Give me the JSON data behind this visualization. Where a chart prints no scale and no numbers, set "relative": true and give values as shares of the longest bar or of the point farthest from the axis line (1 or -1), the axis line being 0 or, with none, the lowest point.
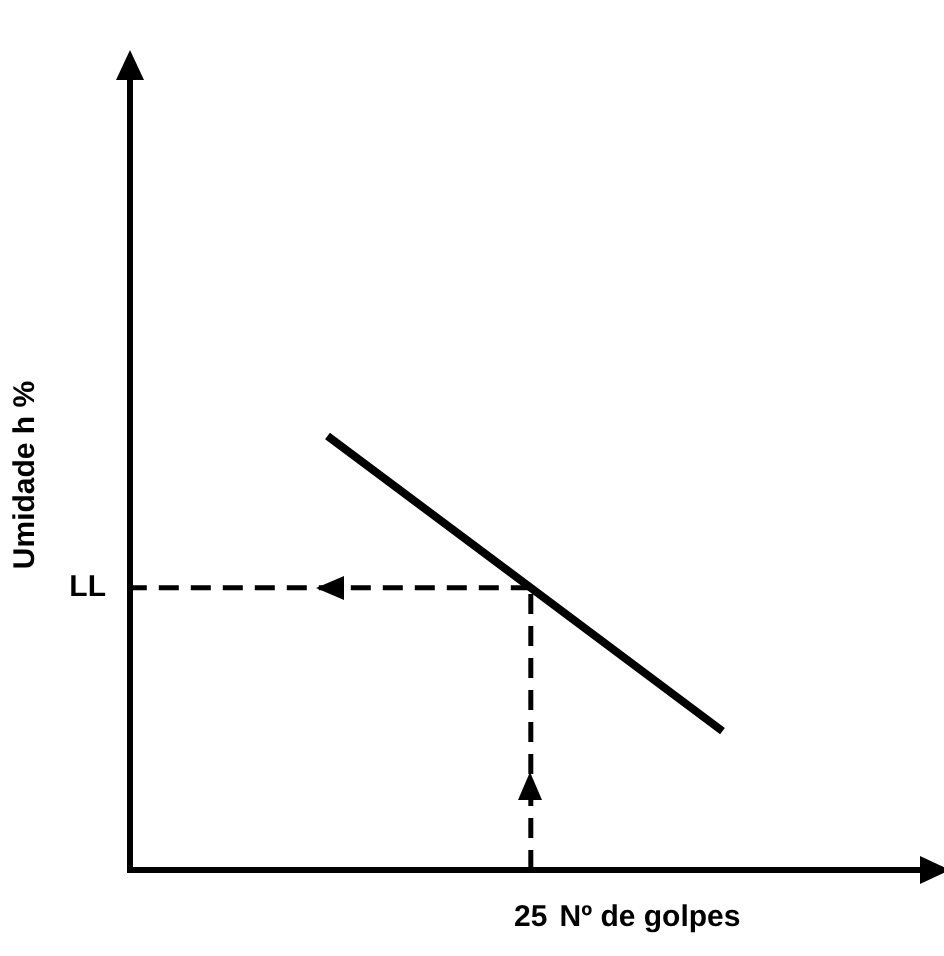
{
  "chart_data": {
    "type": "line",
    "relative": true,
    "xlabel": "Nº de golpes",
    "ylabel": "Umidade h %",
    "categories": [
      null,
      null
    ],
    "series": [
      {
        "color": "#000000",
        "values": [
          1,
          0.32
        ]
      }
    ],
    "ref_lines": [
      {
        "axis": "y",
        "value": 0.65,
        "label": "LL",
        "line_style": "dashed"
      }
    ],
    "annotations": [
      "25"
    ],
    "marker": "none",
    "line_style": "solid",
    "grid": false,
    "legend": false
  }
}
